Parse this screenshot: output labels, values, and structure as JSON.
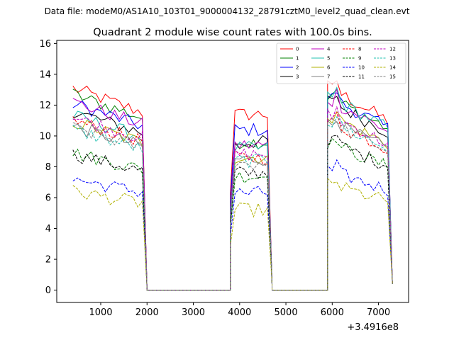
{
  "chart_data": {
    "type": "line",
    "header": "Data file: modeM0/AS1A10_103T01_9000004132_28791cztM0_level2_quad_clean.evt",
    "title": "Quadrant 2 module wise count rates with 100.0s bins.",
    "xlabel": "",
    "ylabel": "",
    "x_offset_label": "+3.4916e8",
    "xlim": [
      50,
      7650
    ],
    "ylim": [
      -0.8,
      16.2
    ],
    "xticks": [
      1000,
      2000,
      3000,
      4000,
      5000,
      6000,
      7000
    ],
    "xtick_labels": [
      "1000",
      "2000",
      "3000",
      "4000",
      "5000",
      "6000",
      "7000"
    ],
    "yticks": [
      0,
      2,
      4,
      6,
      8,
      10,
      12,
      14,
      16
    ],
    "ytick_labels": [
      "0",
      "2",
      "4",
      "6",
      "8",
      "10",
      "12",
      "14",
      "16"
    ],
    "legend_position": "top-right",
    "segments": [
      {
        "start": 400,
        "step": 100,
        "count": 16
      },
      {
        "start": 2000,
        "step": 100,
        "count": 19
      },
      {
        "start": 3800,
        "step": 100,
        "count": 10
      },
      {
        "start": 4700,
        "step": 100,
        "count": 13
      },
      {
        "start": 5900,
        "step": 100,
        "count": 15
      }
    ],
    "series": [
      {
        "name": "0",
        "color": "#ff0000",
        "dash": "solid",
        "levels": [
          13.1,
          11.4,
          13.2
        ]
      },
      {
        "name": "1",
        "color": "#008000",
        "dash": "solid",
        "levels": [
          12.7,
          9.6,
          12.6
        ]
      },
      {
        "name": "2",
        "color": "#0000ff",
        "dash": "solid",
        "levels": [
          12.1,
          10.4,
          12.6
        ]
      },
      {
        "name": "3",
        "color": "#000000",
        "dash": "solid",
        "levels": [
          11.6,
          9.6,
          12.3
        ]
      },
      {
        "name": "4",
        "color": "#c000c0",
        "dash": "solid",
        "levels": [
          12.2,
          9.4,
          12.4
        ]
      },
      {
        "name": "5",
        "color": "#20c0b0",
        "dash": "solid",
        "levels": [
          11.3,
          9.2,
          12.6
        ]
      },
      {
        "name": "6",
        "color": "#b0b000",
        "dash": "solid",
        "levels": [
          10.9,
          8.6,
          11.4
        ]
      },
      {
        "name": "7",
        "color": "#808080",
        "dash": "solid",
        "levels": [
          10.6,
          8.5,
          11.0
        ]
      },
      {
        "name": "8",
        "color": "#ff0000",
        "dash": "dashed",
        "levels": [
          11.0,
          8.6,
          11.0
        ]
      },
      {
        "name": "9",
        "color": "#008000",
        "dash": "dashed",
        "levels": [
          8.9,
          7.4,
          9.6
        ]
      },
      {
        "name": "10",
        "color": "#0000ff",
        "dash": "dashed",
        "levels": [
          7.2,
          6.3,
          7.8
        ]
      },
      {
        "name": "11",
        "color": "#000000",
        "dash": "dashed",
        "levels": [
          8.8,
          7.6,
          9.7
        ]
      },
      {
        "name": "12",
        "color": "#c000c0",
        "dash": "dashed",
        "levels": [
          11.2,
          8.8,
          11.4
        ]
      },
      {
        "name": "13",
        "color": "#20c0b0",
        "dash": "dashed",
        "levels": [
          10.4,
          8.4,
          11.0
        ]
      },
      {
        "name": "14",
        "color": "#b0b000",
        "dash": "dashed",
        "levels": [
          6.4,
          5.2,
          6.9
        ]
      },
      {
        "name": "15",
        "color": "#808080",
        "dash": "dashed",
        "levels": [
          10.5,
          8.2,
          10.9
        ]
      }
    ]
  }
}
